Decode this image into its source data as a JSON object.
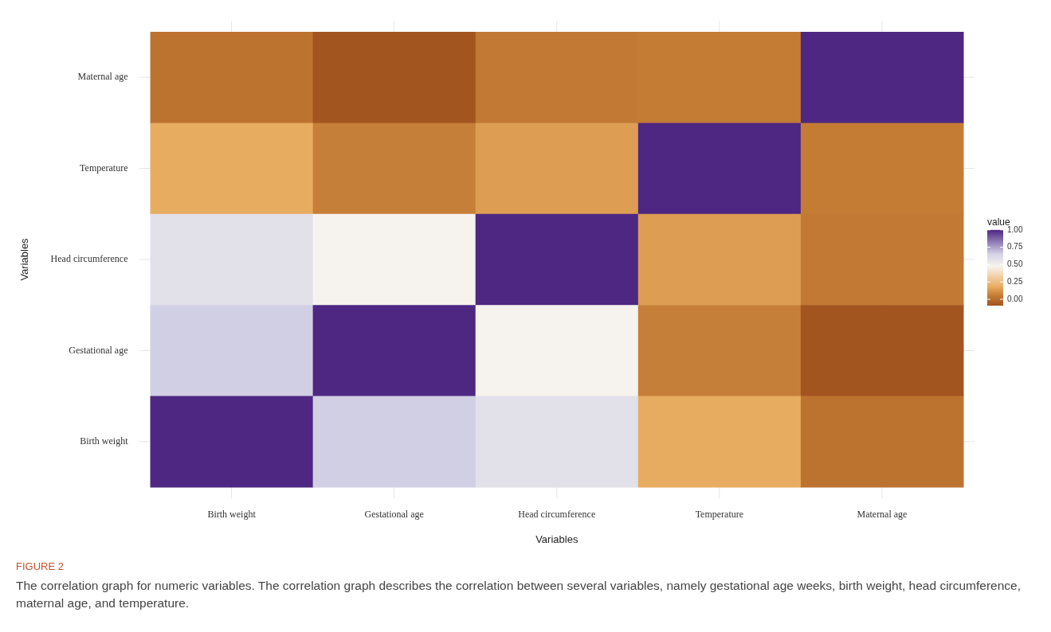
{
  "chart_data": {
    "type": "heatmap",
    "xlabel": "Variables",
    "ylabel": "Variables",
    "clabel": "value",
    "categories": [
      "Birth weight",
      "Gestational age",
      "Head circumference",
      "Temperature",
      "Maternal age"
    ],
    "y_categories": [
      "Maternal age",
      "Temperature",
      "Head circumference",
      "Gestational age",
      "Birth weight"
    ],
    "cells": [
      [
        0.02,
        -0.09,
        0.04,
        0.05,
        1
      ],
      [
        0.18,
        0.06,
        0.14,
        1,
        0.05
      ],
      [
        0.58,
        0.48,
        1,
        0.14,
        0.04
      ],
      [
        0.66,
        1,
        0.48,
        0.06,
        -0.09
      ],
      [
        1,
        0.66,
        0.58,
        0.18,
        0.02
      ]
    ],
    "clim": [
      -0.09,
      1
    ],
    "cticks": [
      {
        "value": 0,
        "label": "0.00"
      },
      {
        "value": 0.25,
        "label": "0.25"
      },
      {
        "value": 0.5,
        "label": "0.50"
      },
      {
        "value": 0.75,
        "label": "0.75"
      },
      {
        "value": 1,
        "label": "1.00"
      }
    ],
    "grid": true,
    "annotations": [
      "FIGURE 2",
      "The correlation graph for numeric variables. The correlation graph describes the correlation between several variables, namely gestational age weeks, birth weight, head circumference, maternal age, and temperature."
    ]
  }
}
